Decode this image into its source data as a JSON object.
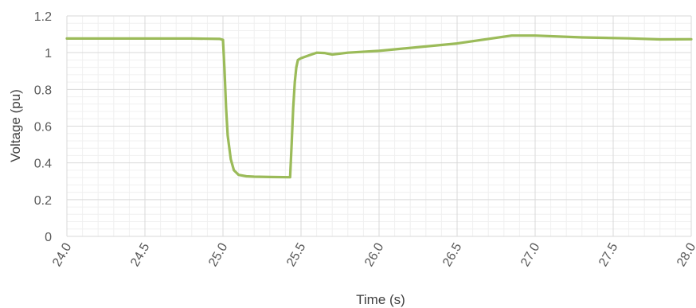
{
  "chart_data": {
    "type": "line",
    "title": "",
    "xlabel": "Time (s)",
    "ylabel": "Voltage (pu)",
    "xlim": [
      24.0,
      28.0
    ],
    "ylim": [
      0,
      1.2
    ],
    "x_ticks": [
      "24.0",
      "24.5",
      "25.0",
      "25.5",
      "26.0",
      "26.5",
      "27.0",
      "27.5",
      "28.0"
    ],
    "y_ticks": [
      "0",
      "0.2",
      "0.4",
      "0.6",
      "0.8",
      "1",
      "1.2"
    ],
    "grid": true,
    "legend": "none",
    "series_color": "#9BBB59",
    "grid_major_color": "#d9d9d9",
    "grid_minor_color": "#f0f0f0",
    "series": [
      {
        "x": [
          24.0,
          24.5,
          24.8,
          24.98,
          25.0,
          25.01,
          25.02,
          25.03,
          25.05,
          25.07,
          25.1,
          25.15,
          25.2,
          25.3,
          25.43,
          25.44,
          25.45,
          25.46,
          25.47,
          25.48,
          25.5,
          25.55,
          25.6,
          25.65,
          25.7,
          25.8,
          26.0,
          26.5,
          26.85,
          27.0,
          27.3,
          27.6,
          27.8,
          28.0
        ],
        "y": [
          1.077,
          1.077,
          1.077,
          1.075,
          1.07,
          0.9,
          0.7,
          0.55,
          0.42,
          0.36,
          0.335,
          0.327,
          0.325,
          0.323,
          0.322,
          0.5,
          0.7,
          0.84,
          0.92,
          0.96,
          0.97,
          0.985,
          1.0,
          0.998,
          0.99,
          1.0,
          1.01,
          1.05,
          1.093,
          1.093,
          1.083,
          1.078,
          1.072,
          1.073
        ]
      }
    ]
  }
}
